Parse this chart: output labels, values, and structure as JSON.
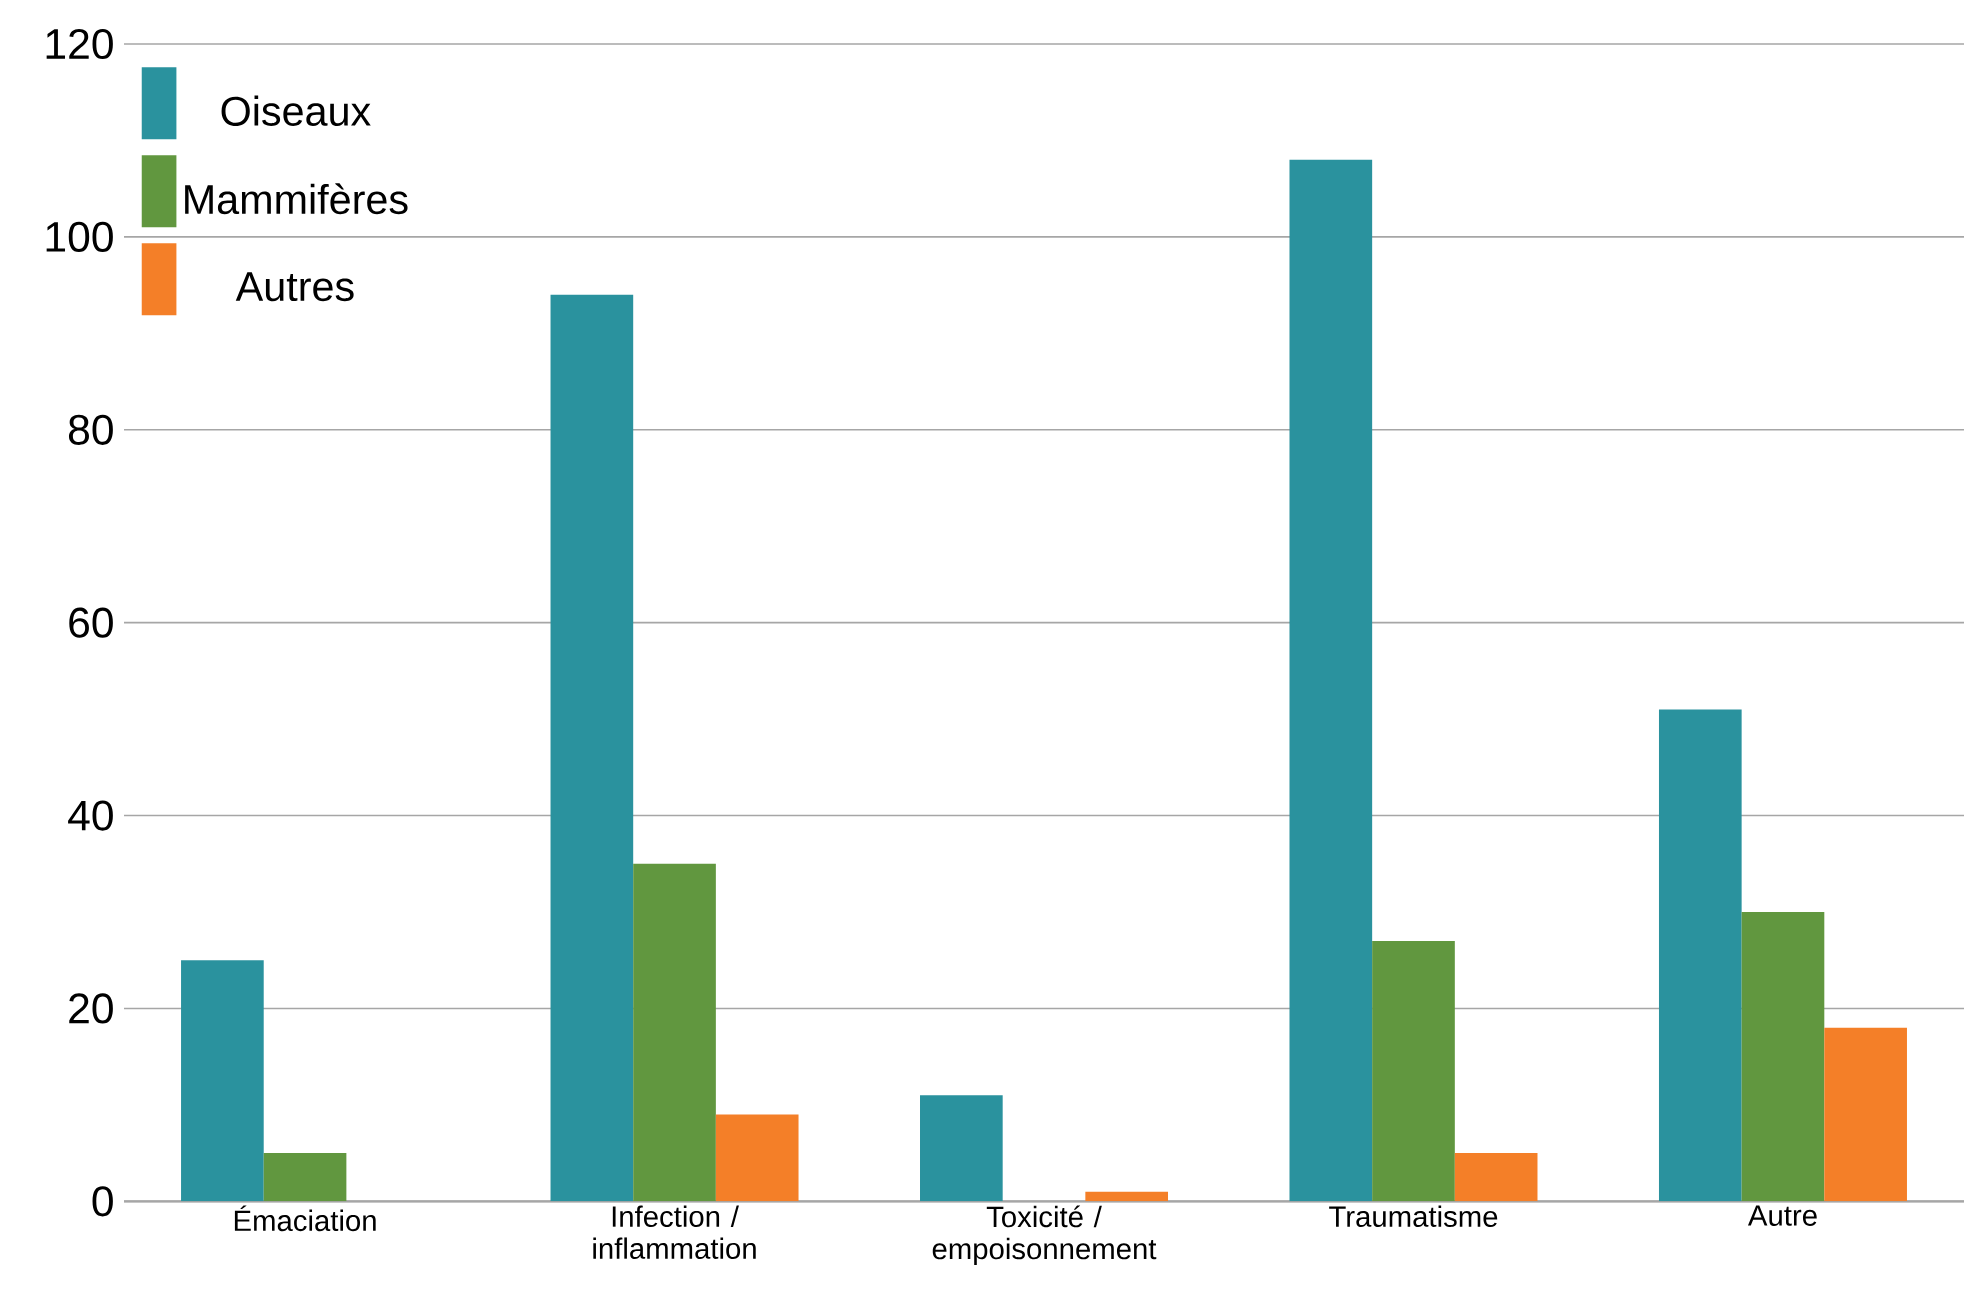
{
  "chart_data": {
    "type": "bar",
    "categories": [
      "Émaciation",
      "Infection / inflammation",
      "Toxicité / empoisonnement",
      "Traumatisme",
      "Autre"
    ],
    "series": [
      {
        "name": "Oiseaux",
        "color": "#2a929e",
        "values": [
          25,
          94,
          11,
          108,
          51
        ]
      },
      {
        "name": "Mammifères",
        "color": "#61973f",
        "values": [
          5,
          35,
          0,
          27,
          30
        ]
      },
      {
        "name": "Autres",
        "color": "#f47f28",
        "values": [
          0,
          9,
          1,
          5,
          18
        ]
      }
    ],
    "ylim": [
      0,
      120
    ],
    "yticks": [
      0,
      20,
      40,
      60,
      80,
      100,
      120
    ],
    "grid": "y",
    "legend": "top left"
  }
}
